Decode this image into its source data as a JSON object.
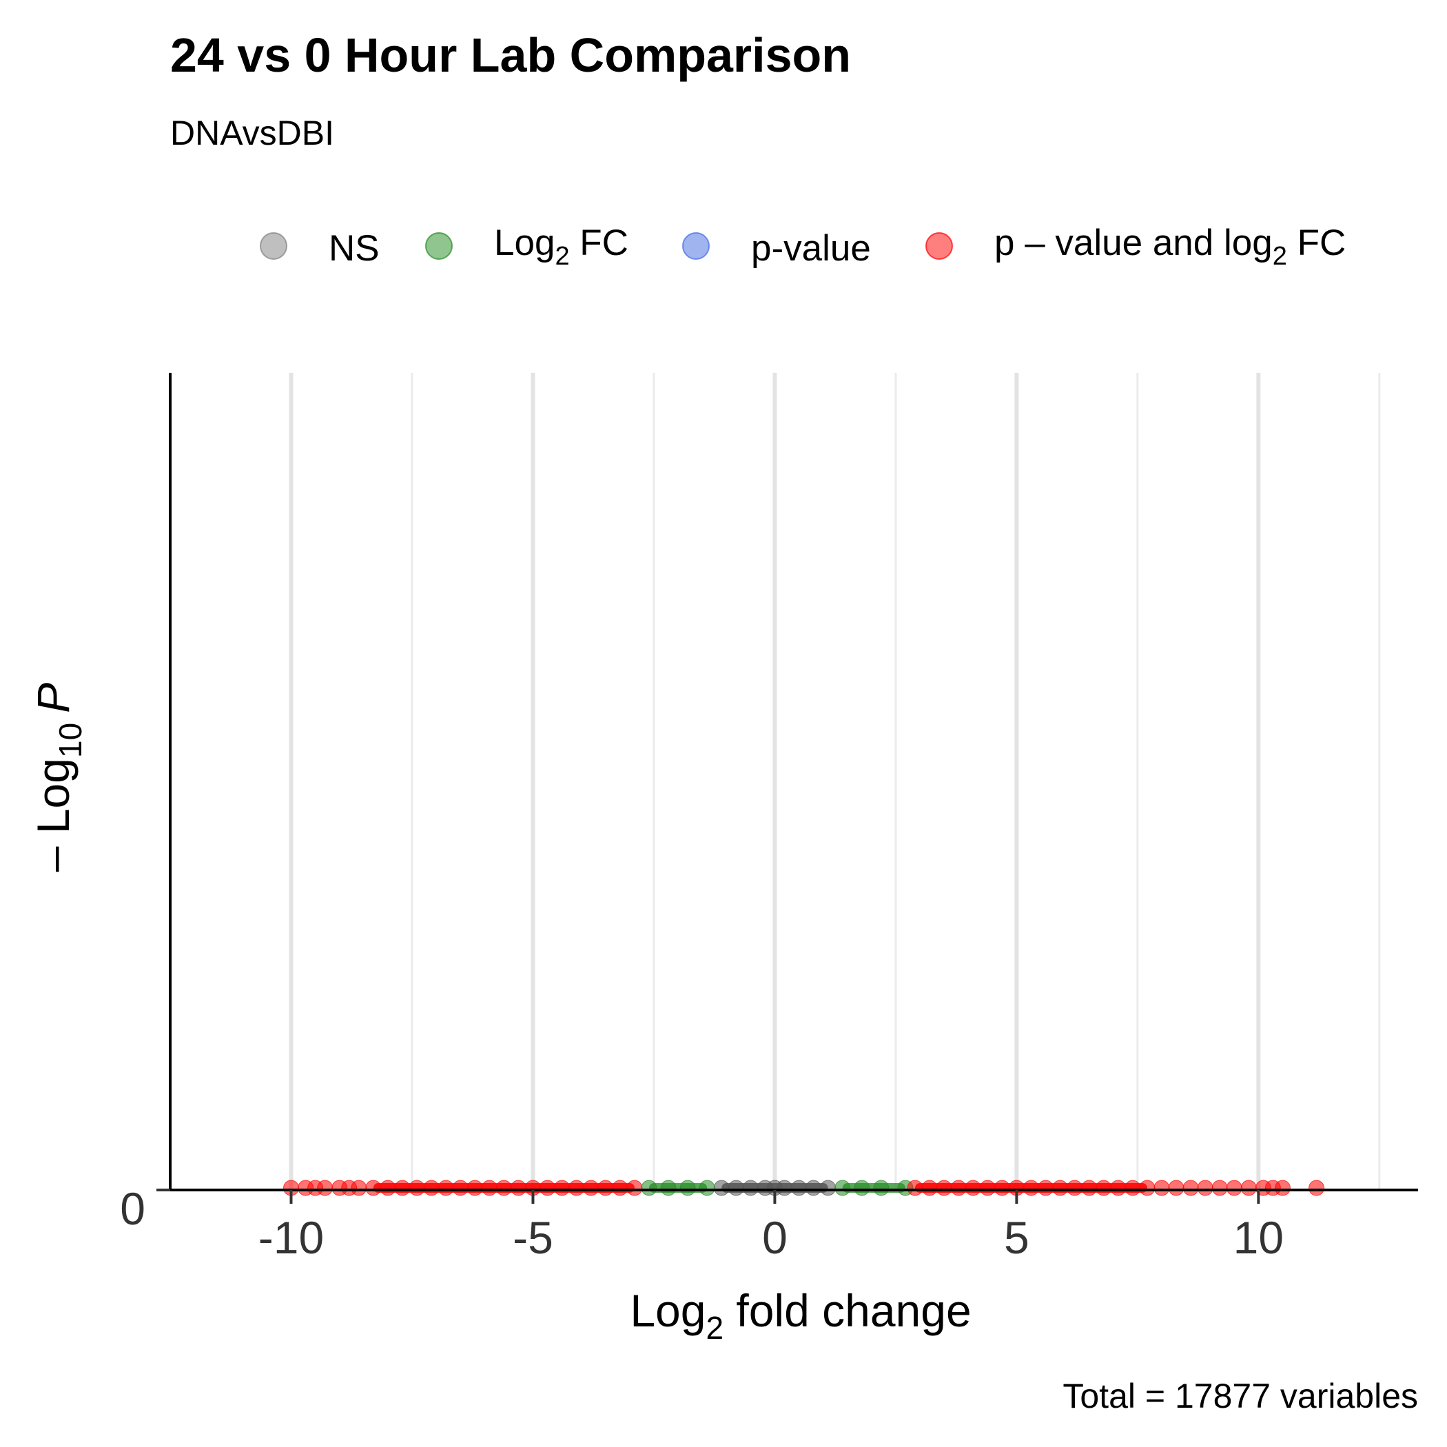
{
  "chart_data": {
    "type": "scatter",
    "title": "24 vs 0 Hour Lab Comparison",
    "subtitle": "DNAvsDBI",
    "caption": "Total = 17877 variables",
    "xlabel": {
      "main": "Log",
      "sub": "2",
      "rest": " fold change"
    },
    "ylabel": {
      "prefix": "– Log",
      "sub": "10",
      "italic": "P"
    },
    "xlim": [
      -12.5,
      13.3
    ],
    "ylim": [
      0,
      1
    ],
    "x_ticks": [
      -10,
      -5,
      0,
      5,
      10
    ],
    "x_tick_labels": [
      "-10",
      "-5",
      "0",
      "5",
      "10"
    ],
    "y_ticks": [
      0
    ],
    "y_tick_labels": [
      "0"
    ],
    "minor_gridlines_x": [
      -7.5,
      -2.5,
      2.5,
      7.5,
      12.5
    ],
    "legend_position": "top",
    "legend": [
      {
        "key": "ns",
        "label_main": "NS",
        "label_sub": "",
        "label_rest": "",
        "color": "#808080"
      },
      {
        "key": "fc",
        "label_main": "Log",
        "label_sub": "2",
        "label_rest": " FC",
        "color": "#228B22"
      },
      {
        "key": "p",
        "label_main": "p-value",
        "label_sub": "",
        "label_rest": "",
        "color": "#4169E1"
      },
      {
        "key": "both",
        "label_main": "p – value and log",
        "label_sub": "2",
        "label_rest": " FC",
        "color": "#FF0000"
      }
    ],
    "series": [
      {
        "name": "NS",
        "color": "#555555",
        "x": [
          -1.1,
          -0.8,
          -0.5,
          -0.2,
          0.0,
          0.2,
          0.5,
          0.8,
          1.1
        ],
        "y": [
          0,
          0,
          0,
          0,
          0,
          0,
          0,
          0,
          0
        ]
      },
      {
        "name": "Log2 FC",
        "color": "#228B22",
        "x": [
          -2.6,
          -2.2,
          -1.8,
          -1.4,
          1.4,
          1.8,
          2.2,
          2.7
        ],
        "y": [
          0,
          0,
          0,
          0,
          0,
          0,
          0,
          0
        ]
      },
      {
        "name": "p - value and log2 FC",
        "color": "#FF0000",
        "x": [
          -10.0,
          -9.7,
          -9.5,
          -9.3,
          -9.0,
          -8.8,
          -8.6,
          -8.3,
          -8.0,
          -7.7,
          -7.4,
          -7.1,
          -6.8,
          -6.5,
          -6.2,
          -5.9,
          -5.6,
          -5.3,
          -5.0,
          -4.7,
          -4.4,
          -4.1,
          -3.8,
          -3.5,
          -3.2,
          -2.9,
          2.9,
          3.2,
          3.5,
          3.8,
          4.1,
          4.4,
          4.7,
          5.0,
          5.3,
          5.6,
          5.9,
          6.2,
          6.5,
          6.8,
          7.1,
          7.4,
          7.7,
          8.0,
          8.3,
          8.6,
          8.9,
          9.2,
          9.5,
          9.8,
          10.1,
          10.3,
          10.5,
          11.2
        ],
        "y": [
          0,
          0,
          0,
          0,
          0,
          0,
          0,
          0,
          0,
          0,
          0,
          0,
          0,
          0,
          0,
          0,
          0,
          0,
          0,
          0,
          0,
          0,
          0,
          0,
          0,
          0,
          0,
          0,
          0,
          0,
          0,
          0,
          0,
          0,
          0,
          0,
          0,
          0,
          0,
          0,
          0,
          0,
          0,
          0,
          0,
          0,
          0,
          0,
          0,
          0,
          0,
          0,
          0,
          0
        ]
      }
    ]
  }
}
